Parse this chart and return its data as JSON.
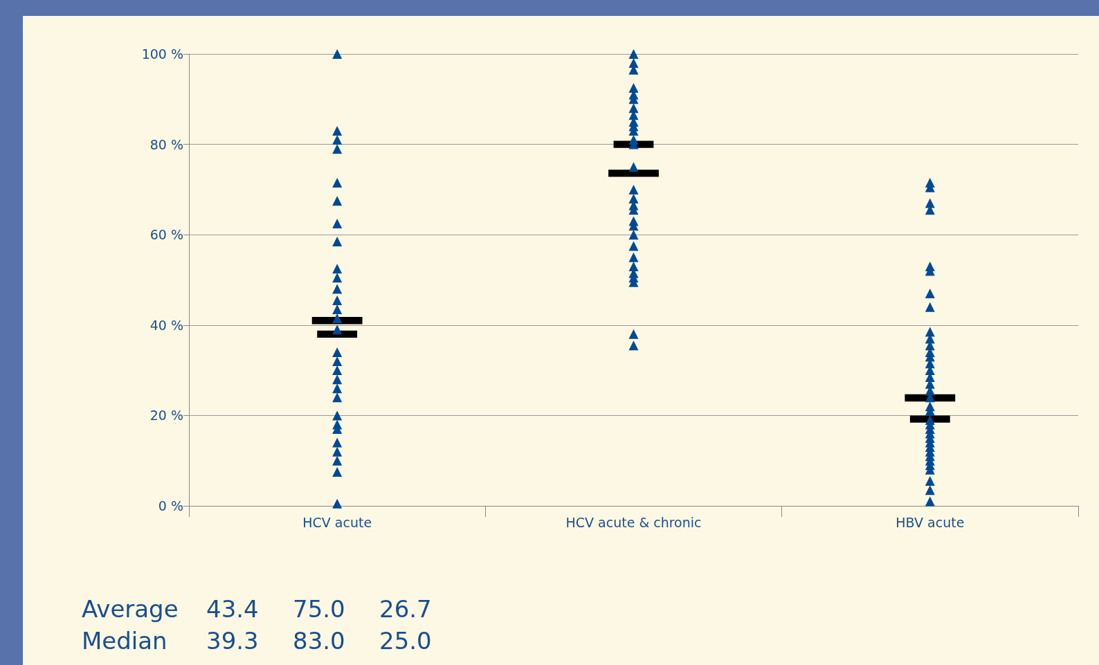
{
  "chart_data": {
    "type": "scatter",
    "categories": [
      "HCV acute",
      "HCV acute & chronic",
      "HBV acute"
    ],
    "series": [
      {
        "color": "#004a94",
        "marker": "triangle",
        "x": [
          "HCV acute",
          "HCV acute",
          "HCV acute",
          "HCV acute",
          "HCV acute",
          "HCV acute",
          "HCV acute",
          "HCV acute",
          "HCV acute",
          "HCV acute",
          "HCV acute",
          "HCV acute",
          "HCV acute",
          "HCV acute",
          "HCV acute",
          "HCV acute",
          "HCV acute",
          "HCV acute",
          "HCV acute",
          "HCV acute",
          "HCV acute",
          "HCV acute",
          "HCV acute",
          "HCV acute",
          "HCV acute",
          "HCV acute",
          "HCV acute",
          "HCV acute",
          "HCV acute"
        ],
        "values": [
          100,
          83,
          81,
          79,
          71.5,
          67.5,
          62.5,
          58.5,
          52.5,
          50.5,
          48,
          45.5,
          43.5,
          41.5,
          39,
          34,
          32,
          30,
          28,
          26,
          24,
          20,
          18,
          17,
          14,
          12,
          10,
          7.5,
          0.5
        ]
      },
      {
        "color": "#004a94",
        "marker": "triangle",
        "x": [
          "HCV acute & chronic",
          "HCV acute & chronic",
          "HCV acute & chronic",
          "HCV acute & chronic",
          "HCV acute & chronic",
          "HCV acute & chronic",
          "HCV acute & chronic",
          "HCV acute & chronic",
          "HCV acute & chronic",
          "HCV acute & chronic",
          "HCV acute & chronic",
          "HCV acute & chronic",
          "HCV acute & chronic",
          "HCV acute & chronic",
          "HCV acute & chronic",
          "HCV acute & chronic",
          "HCV acute & chronic",
          "HCV acute & chronic",
          "HCV acute & chronic",
          "HCV acute & chronic",
          "HCV acute & chronic",
          "HCV acute & chronic",
          "HCV acute & chronic",
          "HCV acute & chronic",
          "HCV acute & chronic",
          "HCV acute & chronic",
          "HCV acute & chronic",
          "HCV acute & chronic",
          "HCV acute & chronic"
        ],
        "values": [
          100,
          98,
          96.5,
          92.5,
          91,
          90,
          88,
          86.5,
          85,
          84,
          83,
          81,
          80,
          75,
          70,
          68,
          66.5,
          65.5,
          63,
          62,
          60,
          57.5,
          55,
          53,
          51.5,
          50.5,
          49.5,
          38,
          35.5
        ]
      },
      {
        "color": "#004a94",
        "marker": "triangle",
        "x": [
          "HBV acute",
          "HBV acute",
          "HBV acute",
          "HBV acute",
          "HBV acute",
          "HBV acute",
          "HBV acute",
          "HBV acute",
          "HBV acute",
          "HBV acute",
          "HBV acute",
          "HBV acute",
          "HBV acute",
          "HBV acute",
          "HBV acute",
          "HBV acute",
          "HBV acute",
          "HBV acute",
          "HBV acute",
          "HBV acute",
          "HBV acute",
          "HBV acute",
          "HBV acute",
          "HBV acute",
          "HBV acute",
          "HBV acute",
          "HBV acute",
          "HBV acute",
          "HBV acute",
          "HBV acute",
          "HBV acute",
          "HBV acute",
          "HBV acute",
          "HBV acute",
          "HBV acute",
          "HBV acute"
        ],
        "values": [
          71.5,
          70.5,
          67,
          65.5,
          53,
          52,
          47,
          44,
          38.5,
          37,
          35.5,
          34,
          33,
          31.5,
          30,
          28.5,
          27,
          25.5,
          24,
          22,
          21,
          19,
          18,
          17,
          16,
          15,
          14,
          13,
          12,
          11,
          10,
          9,
          8,
          5.5,
          3.5,
          1
        ]
      },
      {
        "type": "bar",
        "color": "#000000",
        "base": [
          40.2,
          72.8,
          23.1
        ],
        "values": [
          1.6,
          1.6,
          1.6
        ]
      },
      {
        "type": "bar",
        "color": "#000000",
        "base": [
          37.2,
          79.2,
          18.4
        ],
        "values": [
          1.6,
          1.6,
          1.6
        ]
      }
    ],
    "ylim": [
      0,
      100
    ],
    "yticks": [
      {
        "value": 0,
        "label": "0 %"
      },
      {
        "value": 20,
        "label": "20 %"
      },
      {
        "value": 40,
        "label": "40 %"
      },
      {
        "value": 60,
        "label": "60 %"
      },
      {
        "value": 80,
        "label": "80 %"
      },
      {
        "value": 100,
        "label": "100 %"
      }
    ],
    "grid": "y",
    "annotations": [
      "Average",
      "43.4",
      "75.0",
      "26.7",
      "Median",
      "39.3",
      "83.0",
      "25.0"
    ]
  }
}
